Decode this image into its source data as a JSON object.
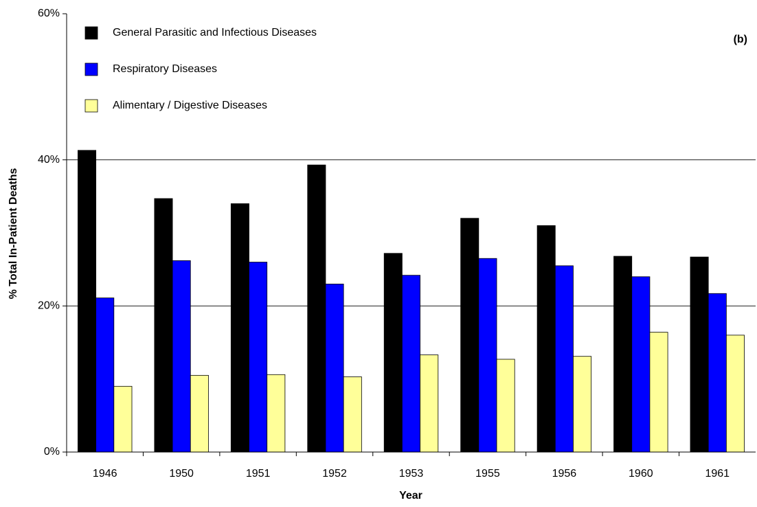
{
  "chart_data": {
    "type": "bar",
    "annotation": "(b)",
    "x_label": "Year",
    "y_label": "% Total In-Patient Deaths",
    "categories": [
      "1946",
      "1950",
      "1951",
      "1952",
      "1953",
      "1955",
      "1956",
      "1960",
      "1961"
    ],
    "series": [
      {
        "name": "General Parasitic and Infectious Diseases",
        "color": "#000000",
        "values": [
          41.3,
          34.7,
          34.0,
          39.3,
          27.2,
          32.0,
          31.0,
          26.8,
          26.7
        ]
      },
      {
        "name": "Respiratory Diseases",
        "color": "#0000ff",
        "values": [
          21.1,
          26.2,
          26.0,
          23.0,
          24.2,
          26.5,
          25.5,
          24.0,
          21.7
        ]
      },
      {
        "name": "Alimentary / Digestive Diseases",
        "color": "#ffff99",
        "values": [
          9.0,
          10.5,
          10.6,
          10.3,
          13.3,
          12.7,
          13.1,
          16.4,
          16.0
        ]
      }
    ],
    "ylim": [
      0,
      60
    ],
    "yticks": [
      {
        "value": 0,
        "label": "0%"
      },
      {
        "value": 20,
        "label": "20%"
      },
      {
        "value": 40,
        "label": "40%"
      },
      {
        "value": 60,
        "label": "60%"
      }
    ],
    "grid": true,
    "legend": "top-left"
  }
}
